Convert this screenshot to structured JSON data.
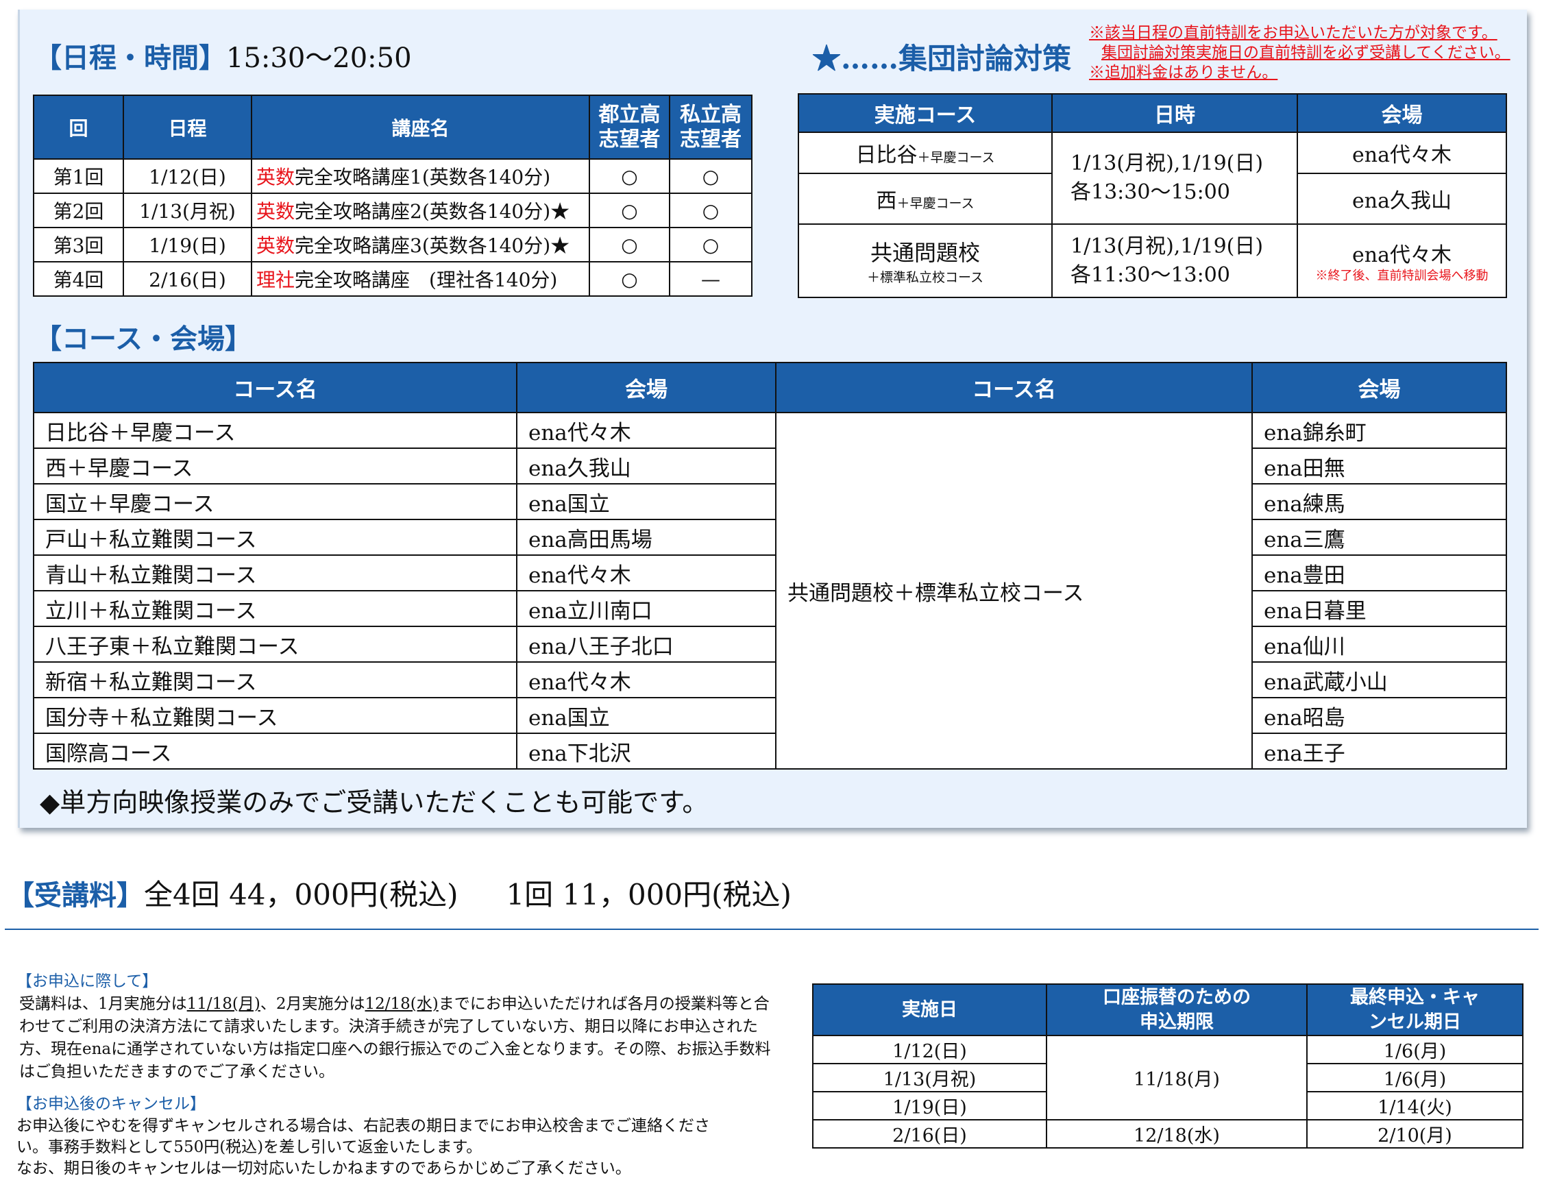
{
  "schedule": {
    "heading": "【日程・時間】",
    "time": "15:30〜20:50",
    "headers": [
      "回",
      "日程",
      "講座名",
      "都立高志望者",
      "私立高志望者"
    ],
    "rows": [
      {
        "no": "第1回",
        "date": "1/12(日)",
        "subject": "英数",
        "course": "完全攻略講座1(英数各140分)",
        "toritsu": "○",
        "shiritsu": "○"
      },
      {
        "no": "第2回",
        "date": "1/13(月祝)",
        "subject": "英数",
        "course": "完全攻略講座2(英数各140分)★",
        "toritsu": "○",
        "shiritsu": "○"
      },
      {
        "no": "第3回",
        "date": "1/19(日)",
        "subject": "英数",
        "course": "完全攻略講座3(英数各140分)★",
        "toritsu": "○",
        "shiritsu": "○"
      },
      {
        "no": "第4回",
        "date": "2/16(日)",
        "subject": "理社",
        "course": "完全攻略講座　(理社各140分)",
        "toritsu": "○",
        "shiritsu": "—"
      }
    ]
  },
  "discussion": {
    "heading": "★……集団討論対策",
    "notes": [
      "※該当日程の直前特訓をお申込いただいた方が対象です。",
      "集団討論対策実施日の直前特訓を必ず受講してください。",
      "※追加料金はありません。"
    ],
    "headers": [
      "実施コース",
      "日時",
      "会場"
    ],
    "rows": [
      {
        "course": "日比谷",
        "course_sub": "＋早慶コース",
        "venue": "ena代々木"
      },
      {
        "course": "西",
        "course_sub": "＋早慶コース",
        "venue": "ena久我山"
      },
      {
        "course": "共通問題校",
        "course_sub": "＋標準私立校コース",
        "venue": "ena代々木",
        "venue_note": "※終了後、直前特訓会場へ移動"
      }
    ],
    "times": [
      [
        "1/13(月祝),1/19(日)",
        "各13:30〜15:00"
      ],
      [
        "1/13(月祝),1/19(日)",
        "各11:30〜13:00"
      ]
    ]
  },
  "courses": {
    "heading": "【コース・会場】",
    "headers": [
      "コース名",
      "会場",
      "コース名",
      "会場"
    ],
    "left": [
      [
        "日比谷＋早慶コース",
        "ena代々木"
      ],
      [
        "西＋早慶コース",
        "ena久我山"
      ],
      [
        "国立＋早慶コース",
        "ena国立"
      ],
      [
        "戸山＋私立難関コース",
        "ena高田馬場"
      ],
      [
        "青山＋私立難関コース",
        "ena代々木"
      ],
      [
        "立川＋私立難関コース",
        "ena立川南口"
      ],
      [
        "八王子東＋私立難関コース",
        "ena八王子北口"
      ],
      [
        "新宿＋私立難関コース",
        "ena代々木"
      ],
      [
        "国分寺＋私立難関コース",
        "ena国立"
      ],
      [
        "国際高コース",
        "ena下北沢"
      ]
    ],
    "right_course": "共通問題校＋標準私立校コース",
    "right_venues": [
      "ena錦糸町",
      "ena田無",
      "ena練馬",
      "ena三鷹",
      "ena豊田",
      "ena日暮里",
      "ena仙川",
      "ena武蔵小山",
      "ena昭島",
      "ena王子"
    ],
    "footnote": "◆単方向映像授業のみでご受講いただくことも可能です。"
  },
  "fee": {
    "heading": "【受講料】",
    "all": "全4回 44，000円(税込)",
    "single": "1回 11，000円(税込)"
  },
  "apply": {
    "heading": "【お申込に際して】",
    "p1": "受講料は、1月実施分は",
    "d1": "11/18(月)",
    "p2": "、2月実施分は",
    "d2": "12/18(水)",
    "p3": "までにお申込いただければ各月の授業料等と合わせてご利用の決済方法にて請求いたします。決済手続きが完了していない方、期日以降にお申込された方、現在enaに通学されていない方は指定口座への銀行振込でのご入金となります。その際、お振込手数料はご負担いただきますのでご了承ください。",
    "cancel_heading": "【お申込後のキャンセル】",
    "cancel_text": "お申込後にやむを得ずキャンセルされる場合は、右記表の期日までにお申込校舎までご連絡ください。事務手数料として550円(税込)を差し引いて返金いたします。",
    "cancel_text2": "なお、期日後のキャンセルは一切対応いたしかねますのであらかじめご了承ください。"
  },
  "deadlines": {
    "headers": [
      "実施日",
      "口座振替のための申込期限",
      "最終申込・キャンセル期日"
    ],
    "dates": [
      "1/12(日)",
      "1/13(月祝)",
      "1/19(日)",
      "2/16(日)"
    ],
    "transfer": [
      "11/18(月)",
      "12/18(水)"
    ],
    "final": [
      "1/6(月)",
      "1/6(月)",
      "1/14(火)",
      "2/10(月)"
    ]
  },
  "colors": {
    "header_blue": "#1c5fa8",
    "accent_red": "#e8141b",
    "panel": "#e9f2fd"
  }
}
